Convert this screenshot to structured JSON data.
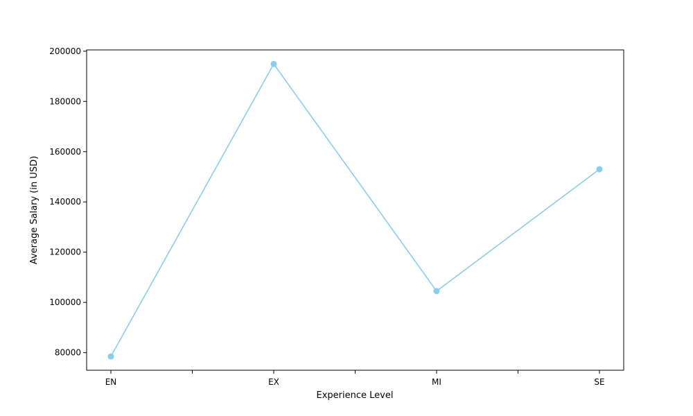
{
  "chart_data": {
    "type": "line",
    "title": "",
    "xlabel": "Experience Level",
    "ylabel": "Average Salary (in USD)",
    "categories": [
      "EN",
      "EX",
      "MI",
      "SE"
    ],
    "series": [
      {
        "values": [
          78500,
          194900,
          104500,
          153000
        ],
        "color": "#87ceeb",
        "marker": "circle"
      }
    ],
    "ylim": [
      73000,
      200500
    ],
    "yticks": [
      80000,
      100000,
      120000,
      140000,
      160000,
      180000,
      200000
    ],
    "ytick_labels": [
      "80000",
      "100000",
      "120000",
      "140000",
      "160000",
      "180000",
      "200000"
    ],
    "grid": false,
    "legend": false
  }
}
